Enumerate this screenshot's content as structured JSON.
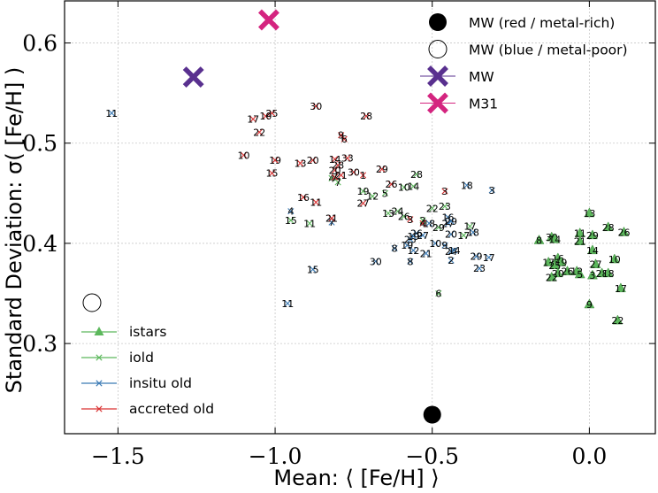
{
  "chart_data": {
    "type": "scatter",
    "xlabel": "Mean: ⟨ [Fe/H] ⟩",
    "ylabel": "Standard Deviation: σ( [Fe/H] )",
    "xlim": [
      -1.67,
      0.21
    ],
    "ylim": [
      0.21,
      0.642
    ],
    "xticks": [
      -1.5,
      -1.0,
      -0.5,
      0.0
    ],
    "xtick_labels": [
      "−1.5",
      "−1.0",
      "−0.5",
      "0.0"
    ],
    "yticks": [
      0.3,
      0.4,
      0.5,
      0.6
    ],
    "ytick_labels": [
      "0.3",
      "0.4",
      "0.5",
      "0.6"
    ],
    "grid": true,
    "colors": {
      "istars": "#5cb85c",
      "iold": "#5cb85c",
      "insitu_old": "#3a7ab5",
      "accreted_old": "#d93232",
      "mw": "#59308f",
      "m31": "#d4247f"
    },
    "legend_top": {
      "placement": "top-right",
      "entries": [
        {
          "key": "mw_red",
          "label": "MW (red / metal-rich)",
          "marker": "filled-circle"
        },
        {
          "key": "mw_blue",
          "label": "MW (blue / metal-poor)",
          "marker": "open-circle"
        },
        {
          "key": "mw",
          "label": "MW",
          "marker": "x-thick"
        },
        {
          "key": "m31",
          "label": "M31",
          "marker": "x-thick"
        }
      ]
    },
    "legend_bottom": {
      "placement": "lower-left",
      "entries": [
        {
          "key": "istars",
          "label": "istars",
          "marker": "triangle"
        },
        {
          "key": "iold",
          "label": "iold",
          "marker": "x"
        },
        {
          "key": "insitu_old",
          "label": "insitu old",
          "marker": "x"
        },
        {
          "key": "accreted_old",
          "label": "accreted old",
          "marker": "x"
        }
      ]
    },
    "references": [
      {
        "name": "MW (red / metal-rich)",
        "marker": "filled-circle",
        "x": -0.5,
        "y": 0.229
      },
      {
        "name": "MW",
        "marker": "x-thick",
        "x": -1.26,
        "y": 0.566
      },
      {
        "name": "M31",
        "marker": "x-thick",
        "x": -1.02,
        "y": 0.623
      }
    ],
    "series": [
      {
        "name": "istars",
        "marker": "triangle",
        "points": [
          {
            "x": 0.0,
            "y": 0.43,
            "label": "13"
          },
          {
            "x": 0.06,
            "y": 0.416,
            "label": "28"
          },
          {
            "x": 0.11,
            "y": 0.411,
            "label": "26"
          },
          {
            "x": -0.03,
            "y": 0.41,
            "label": "11"
          },
          {
            "x": 0.01,
            "y": 0.408,
            "label": "29"
          },
          {
            "x": -0.03,
            "y": 0.402,
            "label": "21"
          },
          {
            "x": -0.12,
            "y": 0.406,
            "label": "30"
          },
          {
            "x": -0.11,
            "y": 0.404,
            "label": "14"
          },
          {
            "x": -0.16,
            "y": 0.403,
            "label": "8"
          },
          {
            "x": 0.01,
            "y": 0.393,
            "label": "14"
          },
          {
            "x": -0.1,
            "y": 0.385,
            "label": "16"
          },
          {
            "x": 0.08,
            "y": 0.384,
            "label": "10"
          },
          {
            "x": -0.13,
            "y": 0.381,
            "label": "17"
          },
          {
            "x": -0.09,
            "y": 0.381,
            "label": "19"
          },
          {
            "x": -0.11,
            "y": 0.378,
            "label": "25"
          },
          {
            "x": 0.02,
            "y": 0.379,
            "label": "27"
          },
          {
            "x": -0.07,
            "y": 0.372,
            "label": "26"
          },
          {
            "x": -0.04,
            "y": 0.372,
            "label": "12"
          },
          {
            "x": -0.1,
            "y": 0.37,
            "label": "20"
          },
          {
            "x": -0.03,
            "y": 0.369,
            "label": "5"
          },
          {
            "x": 0.04,
            "y": 0.37,
            "label": "28"
          },
          {
            "x": 0.06,
            "y": 0.37,
            "label": "18"
          },
          {
            "x": -0.12,
            "y": 0.366,
            "label": "22"
          },
          {
            "x": 0.01,
            "y": 0.368,
            "label": "3"
          },
          {
            "x": 0.1,
            "y": 0.355,
            "label": "17"
          },
          {
            "x": 0.0,
            "y": 0.339,
            "label": "9"
          },
          {
            "x": 0.09,
            "y": 0.323,
            "label": "22"
          }
        ]
      },
      {
        "name": "iold",
        "marker": "x",
        "points": [
          {
            "x": -0.48,
            "y": 0.416,
            "label": "29"
          },
          {
            "x": -0.53,
            "y": 0.423,
            "label": "2"
          },
          {
            "x": -0.59,
            "y": 0.427,
            "label": "26"
          },
          {
            "x": -0.61,
            "y": 0.432,
            "label": "24"
          },
          {
            "x": -0.64,
            "y": 0.43,
            "label": "13"
          },
          {
            "x": -0.72,
            "y": 0.452,
            "label": "19"
          },
          {
            "x": -0.65,
            "y": 0.45,
            "label": "5"
          },
          {
            "x": -0.69,
            "y": 0.447,
            "label": "12"
          },
          {
            "x": -0.82,
            "y": 0.465,
            "label": "4"
          },
          {
            "x": -0.8,
            "y": 0.461,
            "label": "7"
          },
          {
            "x": -0.89,
            "y": 0.42,
            "label": "11"
          },
          {
            "x": -0.95,
            "y": 0.423,
            "label": "15"
          },
          {
            "x": -0.38,
            "y": 0.417,
            "label": "17"
          },
          {
            "x": -0.5,
            "y": 0.435,
            "label": "22"
          },
          {
            "x": -0.46,
            "y": 0.437,
            "label": "23"
          },
          {
            "x": -0.55,
            "y": 0.469,
            "label": "28"
          },
          {
            "x": -0.59,
            "y": 0.456,
            "label": "10"
          },
          {
            "x": -0.56,
            "y": 0.457,
            "label": "14"
          },
          {
            "x": -0.48,
            "y": 0.35,
            "label": "6"
          },
          {
            "x": -0.4,
            "y": 0.408,
            "label": "17"
          }
        ]
      },
      {
        "name": "insitu old",
        "marker": "x",
        "points": [
          {
            "x": -1.52,
            "y": 0.53,
            "label": "11"
          },
          {
            "x": -0.96,
            "y": 0.34,
            "label": "11"
          },
          {
            "x": -0.88,
            "y": 0.374,
            "label": "15"
          },
          {
            "x": -0.95,
            "y": 0.432,
            "label": "4"
          },
          {
            "x": -0.82,
            "y": 0.421,
            "label": "7"
          },
          {
            "x": -0.68,
            "y": 0.382,
            "label": "30"
          },
          {
            "x": -0.62,
            "y": 0.395,
            "label": "8"
          },
          {
            "x": -0.57,
            "y": 0.404,
            "label": "25"
          },
          {
            "x": -0.53,
            "y": 0.408,
            "label": "27"
          },
          {
            "x": -0.55,
            "y": 0.41,
            "label": "26"
          },
          {
            "x": -0.56,
            "y": 0.407,
            "label": "19"
          },
          {
            "x": -0.58,
            "y": 0.398,
            "label": "19"
          },
          {
            "x": -0.56,
            "y": 0.393,
            "label": "12"
          },
          {
            "x": -0.52,
            "y": 0.39,
            "label": "21"
          },
          {
            "x": -0.57,
            "y": 0.382,
            "label": "8"
          },
          {
            "x": -0.46,
            "y": 0.398,
            "label": "9"
          },
          {
            "x": -0.49,
            "y": 0.4,
            "label": "10"
          },
          {
            "x": -0.44,
            "y": 0.392,
            "label": "24"
          },
          {
            "x": -0.44,
            "y": 0.383,
            "label": "2"
          },
          {
            "x": -0.43,
            "y": 0.393,
            "label": "14"
          },
          {
            "x": -0.44,
            "y": 0.409,
            "label": "20"
          },
          {
            "x": -0.36,
            "y": 0.387,
            "label": "29"
          },
          {
            "x": -0.32,
            "y": 0.386,
            "label": "17"
          },
          {
            "x": -0.35,
            "y": 0.375,
            "label": "23"
          },
          {
            "x": -0.37,
            "y": 0.411,
            "label": "18"
          },
          {
            "x": -0.45,
            "y": 0.42,
            "label": "27"
          },
          {
            "x": -0.45,
            "y": 0.426,
            "label": "16"
          },
          {
            "x": -0.44,
            "y": 0.422,
            "label": "29"
          },
          {
            "x": -0.31,
            "y": 0.453,
            "label": "3"
          },
          {
            "x": -0.39,
            "y": 0.458,
            "label": "18"
          },
          {
            "x": -0.51,
            "y": 0.42,
            "label": "18"
          }
        ]
      },
      {
        "name": "accreted old",
        "marker": "x",
        "points": [
          {
            "x": -1.1,
            "y": 0.488,
            "label": "10"
          },
          {
            "x": -1.07,
            "y": 0.524,
            "label": "17"
          },
          {
            "x": -1.01,
            "y": 0.53,
            "label": "25"
          },
          {
            "x": -1.03,
            "y": 0.527,
            "label": "10"
          },
          {
            "x": -1.05,
            "y": 0.511,
            "label": "22"
          },
          {
            "x": -0.87,
            "y": 0.537,
            "label": "30"
          },
          {
            "x": -0.71,
            "y": 0.527,
            "label": "28"
          },
          {
            "x": -0.79,
            "y": 0.508,
            "label": "9"
          },
          {
            "x": -0.78,
            "y": 0.504,
            "label": "6"
          },
          {
            "x": -1.0,
            "y": 0.483,
            "label": "19"
          },
          {
            "x": -0.92,
            "y": 0.48,
            "label": "13"
          },
          {
            "x": -0.88,
            "y": 0.483,
            "label": "20"
          },
          {
            "x": -1.01,
            "y": 0.47,
            "label": "15"
          },
          {
            "x": -0.81,
            "y": 0.484,
            "label": "14"
          },
          {
            "x": -0.77,
            "y": 0.485,
            "label": "33"
          },
          {
            "x": -0.8,
            "y": 0.478,
            "label": "28"
          },
          {
            "x": -0.81,
            "y": 0.473,
            "label": "20"
          },
          {
            "x": -0.79,
            "y": 0.468,
            "label": "21"
          },
          {
            "x": -0.81,
            "y": 0.466,
            "label": "7"
          },
          {
            "x": -0.72,
            "y": 0.468,
            "label": "1"
          },
          {
            "x": -0.66,
            "y": 0.474,
            "label": "29"
          },
          {
            "x": -0.63,
            "y": 0.459,
            "label": "26"
          },
          {
            "x": -0.75,
            "y": 0.471,
            "label": "30"
          },
          {
            "x": -0.91,
            "y": 0.446,
            "label": "16"
          },
          {
            "x": -0.87,
            "y": 0.441,
            "label": "11"
          },
          {
            "x": -0.82,
            "y": 0.425,
            "label": "21"
          },
          {
            "x": -0.72,
            "y": 0.44,
            "label": "27"
          },
          {
            "x": -0.53,
            "y": 0.42,
            "label": "4"
          },
          {
            "x": -0.57,
            "y": 0.424,
            "label": "3"
          },
          {
            "x": -0.46,
            "y": 0.452,
            "label": "3"
          }
        ]
      }
    ]
  }
}
